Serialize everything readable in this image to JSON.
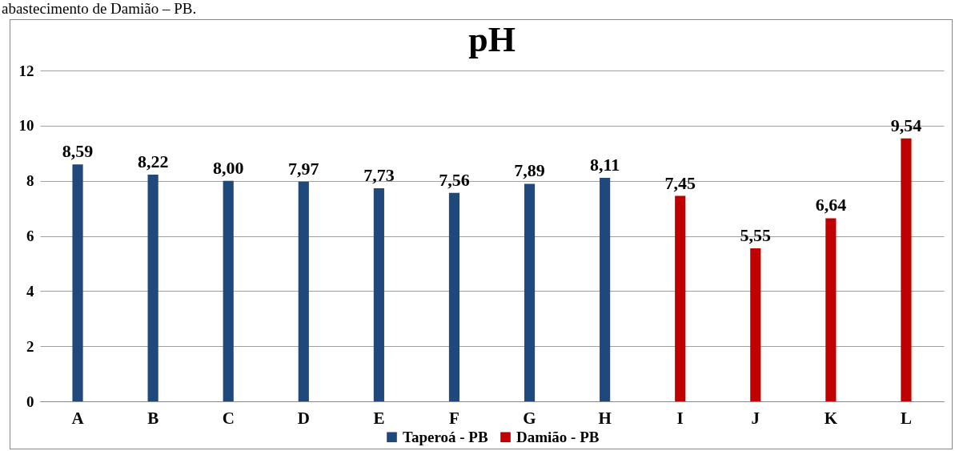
{
  "chart_data": {
    "type": "bar",
    "title": "pH",
    "annotations": [
      "abastecimento de Damião – PB."
    ],
    "categories": [
      "A",
      "B",
      "C",
      "D",
      "E",
      "F",
      "G",
      "H",
      "I",
      "J",
      "K",
      "L"
    ],
    "series": [
      {
        "name": "Taperoá - PB",
        "color": "#1f497d",
        "values": [
          8.59,
          8.22,
          8.0,
          7.97,
          7.73,
          7.56,
          7.89,
          8.11,
          null,
          null,
          null,
          null
        ],
        "value_labels": [
          "8,59",
          "8,22",
          "8,00",
          "7,97",
          "7,73",
          "7,56",
          "7,89",
          "8,11",
          null,
          null,
          null,
          null
        ]
      },
      {
        "name": "Damião - PB",
        "color": "#c00000",
        "values": [
          null,
          null,
          null,
          null,
          null,
          null,
          null,
          null,
          7.45,
          5.55,
          6.64,
          9.54
        ],
        "value_labels": [
          null,
          null,
          null,
          null,
          null,
          null,
          null,
          null,
          "7,45",
          "5,55",
          "6,64",
          "9,54"
        ]
      }
    ],
    "ylim": [
      0,
      12
    ],
    "yticks": [
      0,
      2,
      4,
      6,
      8,
      10,
      12
    ],
    "grid": "y",
    "legend": "bottom"
  }
}
